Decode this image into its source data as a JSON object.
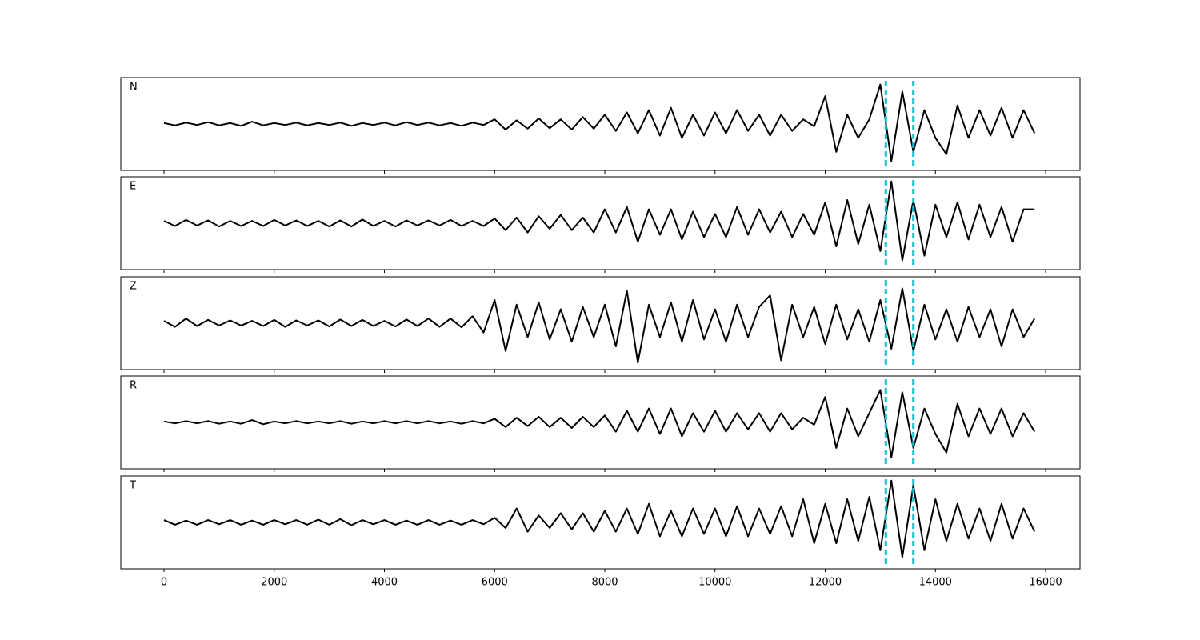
{
  "chart_data": {
    "type": "line",
    "x": [
      0,
      200,
      400,
      600,
      800,
      1000,
      1200,
      1400,
      1600,
      1800,
      2000,
      2200,
      2400,
      2600,
      2800,
      3000,
      3200,
      3400,
      3600,
      3800,
      4000,
      4200,
      4400,
      4600,
      4800,
      5000,
      5200,
      5400,
      5600,
      5800,
      6000,
      6200,
      6400,
      6600,
      6800,
      7000,
      7200,
      7400,
      7600,
      7800,
      8000,
      8200,
      8400,
      8600,
      8800,
      9000,
      9200,
      9400,
      9600,
      9800,
      10000,
      10200,
      10400,
      10600,
      10800,
      11000,
      11200,
      11400,
      11600,
      11800,
      12000,
      12200,
      12400,
      12600,
      12800,
      13000,
      13200,
      13400,
      13600,
      13800,
      14000,
      14200,
      14400,
      14600,
      14800,
      15000,
      15200,
      15400,
      15600,
      15800
    ],
    "xlim": [
      -784,
      16624
    ],
    "xticks": [
      0,
      2000,
      4000,
      6000,
      8000,
      10000,
      12000,
      14000,
      16000
    ],
    "ylim": [
      -1,
      1
    ],
    "markers": [
      13100,
      13600
    ],
    "marker_color": "#17becf",
    "series": [
      {
        "name": "N",
        "color": "#000000",
        "values": [
          0.02,
          -0.03,
          0.03,
          -0.02,
          0.04,
          -0.03,
          0.02,
          -0.04,
          0.05,
          -0.03,
          0.02,
          -0.02,
          0.03,
          -0.03,
          0.02,
          -0.02,
          0.03,
          -0.04,
          0.02,
          -0.02,
          0.03,
          -0.03,
          0.04,
          -0.02,
          0.03,
          -0.03,
          0.02,
          -0.04,
          0.03,
          -0.02,
          0.1,
          -0.12,
          0.08,
          -0.1,
          0.12,
          -0.09,
          0.1,
          -0.12,
          0.15,
          -0.1,
          0.2,
          -0.15,
          0.25,
          -0.2,
          0.3,
          -0.25,
          0.35,
          -0.3,
          0.2,
          -0.25,
          0.25,
          -0.2,
          0.3,
          -0.15,
          0.2,
          -0.25,
          0.2,
          -0.15,
          0.1,
          -0.05,
          0.6,
          -0.6,
          0.2,
          -0.3,
          0.1,
          0.85,
          -0.8,
          0.7,
          -0.6,
          0.3,
          -0.3,
          -0.65,
          0.4,
          -0.3,
          0.3,
          -0.25,
          0.35,
          -0.3,
          0.3,
          -0.2
        ]
      },
      {
        "name": "E",
        "color": "#000000",
        "values": [
          0.05,
          -0.06,
          0.07,
          -0.05,
          0.06,
          -0.07,
          0.05,
          -0.06,
          0.05,
          -0.06,
          0.07,
          -0.05,
          0.06,
          -0.06,
          0.05,
          -0.07,
          0.06,
          -0.07,
          0.08,
          -0.06,
          0.05,
          -0.07,
          0.06,
          -0.05,
          0.06,
          -0.05,
          0.07,
          -0.06,
          0.05,
          -0.06,
          0.1,
          -0.15,
          0.12,
          -0.2,
          0.15,
          -0.12,
          0.18,
          -0.15,
          0.12,
          -0.2,
          0.3,
          -0.2,
          0.35,
          -0.4,
          0.3,
          -0.25,
          0.3,
          -0.35,
          0.25,
          -0.3,
          0.2,
          -0.3,
          0.35,
          -0.25,
          0.3,
          -0.2,
          0.25,
          -0.3,
          0.2,
          -0.25,
          0.45,
          -0.5,
          0.5,
          -0.45,
          0.4,
          -0.6,
          0.9,
          -0.8,
          0.5,
          -0.7,
          0.4,
          -0.3,
          0.45,
          -0.35,
          0.4,
          -0.3,
          0.35,
          -0.4,
          0.3,
          0.3
        ]
      },
      {
        "name": "Z",
        "color": "#000000",
        "values": [
          0.05,
          -0.08,
          0.1,
          -0.06,
          0.07,
          -0.05,
          0.06,
          -0.05,
          0.05,
          -0.06,
          0.07,
          -0.08,
          0.06,
          -0.05,
          0.06,
          -0.07,
          0.08,
          -0.06,
          0.07,
          -0.06,
          0.05,
          -0.07,
          0.08,
          -0.06,
          0.1,
          -0.08,
          0.1,
          -0.09,
          0.15,
          -0.2,
          0.5,
          -0.6,
          0.4,
          -0.3,
          0.45,
          -0.35,
          0.3,
          -0.4,
          0.35,
          -0.3,
          0.4,
          -0.5,
          0.7,
          -0.85,
          0.4,
          -0.3,
          0.45,
          -0.4,
          0.5,
          -0.35,
          0.3,
          -0.4,
          0.4,
          -0.3,
          0.35,
          0.6,
          -0.8,
          0.4,
          -0.3,
          0.35,
          -0.45,
          0.4,
          -0.35,
          0.3,
          -0.4,
          0.5,
          -0.55,
          0.75,
          -0.6,
          0.4,
          -0.35,
          0.3,
          -0.4,
          0.35,
          -0.3,
          0.3,
          -0.5,
          0.3,
          -0.3,
          0.1
        ]
      },
      {
        "name": "R",
        "color": "#000000",
        "values": [
          0.02,
          -0.02,
          0.03,
          -0.02,
          0.03,
          -0.03,
          0.02,
          -0.03,
          0.05,
          -0.04,
          0.02,
          -0.02,
          0.03,
          -0.02,
          0.02,
          -0.02,
          0.03,
          -0.03,
          0.02,
          -0.02,
          0.03,
          -0.02,
          0.03,
          -0.02,
          0.03,
          -0.02,
          0.02,
          -0.03,
          0.03,
          -0.02,
          0.08,
          -0.1,
          0.1,
          -0.08,
          0.12,
          -0.1,
          0.1,
          -0.12,
          0.12,
          -0.1,
          0.15,
          -0.2,
          0.25,
          -0.2,
          0.3,
          -0.25,
          0.3,
          -0.3,
          0.2,
          -0.2,
          0.25,
          -0.2,
          0.2,
          -0.15,
          0.2,
          -0.2,
          0.2,
          -0.15,
          0.1,
          -0.05,
          0.55,
          -0.55,
          0.3,
          -0.3,
          0.2,
          0.7,
          -0.75,
          0.65,
          -0.55,
          0.3,
          -0.25,
          -0.65,
          0.4,
          -0.3,
          0.3,
          -0.25,
          0.3,
          -0.3,
          0.2,
          -0.2
        ]
      },
      {
        "name": "T",
        "color": "#000000",
        "values": [
          0.05,
          -0.05,
          0.04,
          -0.05,
          0.05,
          -0.04,
          0.05,
          -0.05,
          0.04,
          -0.05,
          0.05,
          -0.04,
          0.05,
          -0.05,
          0.06,
          -0.05,
          0.07,
          -0.06,
          0.05,
          -0.04,
          0.05,
          -0.05,
          0.04,
          -0.05,
          0.05,
          -0.05,
          0.04,
          -0.05,
          0.05,
          -0.04,
          0.1,
          -0.12,
          0.3,
          -0.2,
          0.15,
          -0.12,
          0.2,
          -0.15,
          0.2,
          -0.2,
          0.25,
          -0.2,
          0.3,
          -0.25,
          0.4,
          -0.3,
          0.25,
          -0.3,
          0.3,
          -0.25,
          0.3,
          -0.3,
          0.35,
          -0.3,
          0.3,
          -0.25,
          0.35,
          -0.3,
          0.5,
          -0.45,
          0.4,
          -0.45,
          0.5,
          -0.4,
          0.55,
          -0.6,
          0.9,
          -0.75,
          0.8,
          -0.6,
          0.5,
          -0.4,
          0.4,
          -0.35,
          0.3,
          -0.4,
          0.4,
          -0.35,
          0.3,
          -0.2
        ]
      }
    ]
  }
}
